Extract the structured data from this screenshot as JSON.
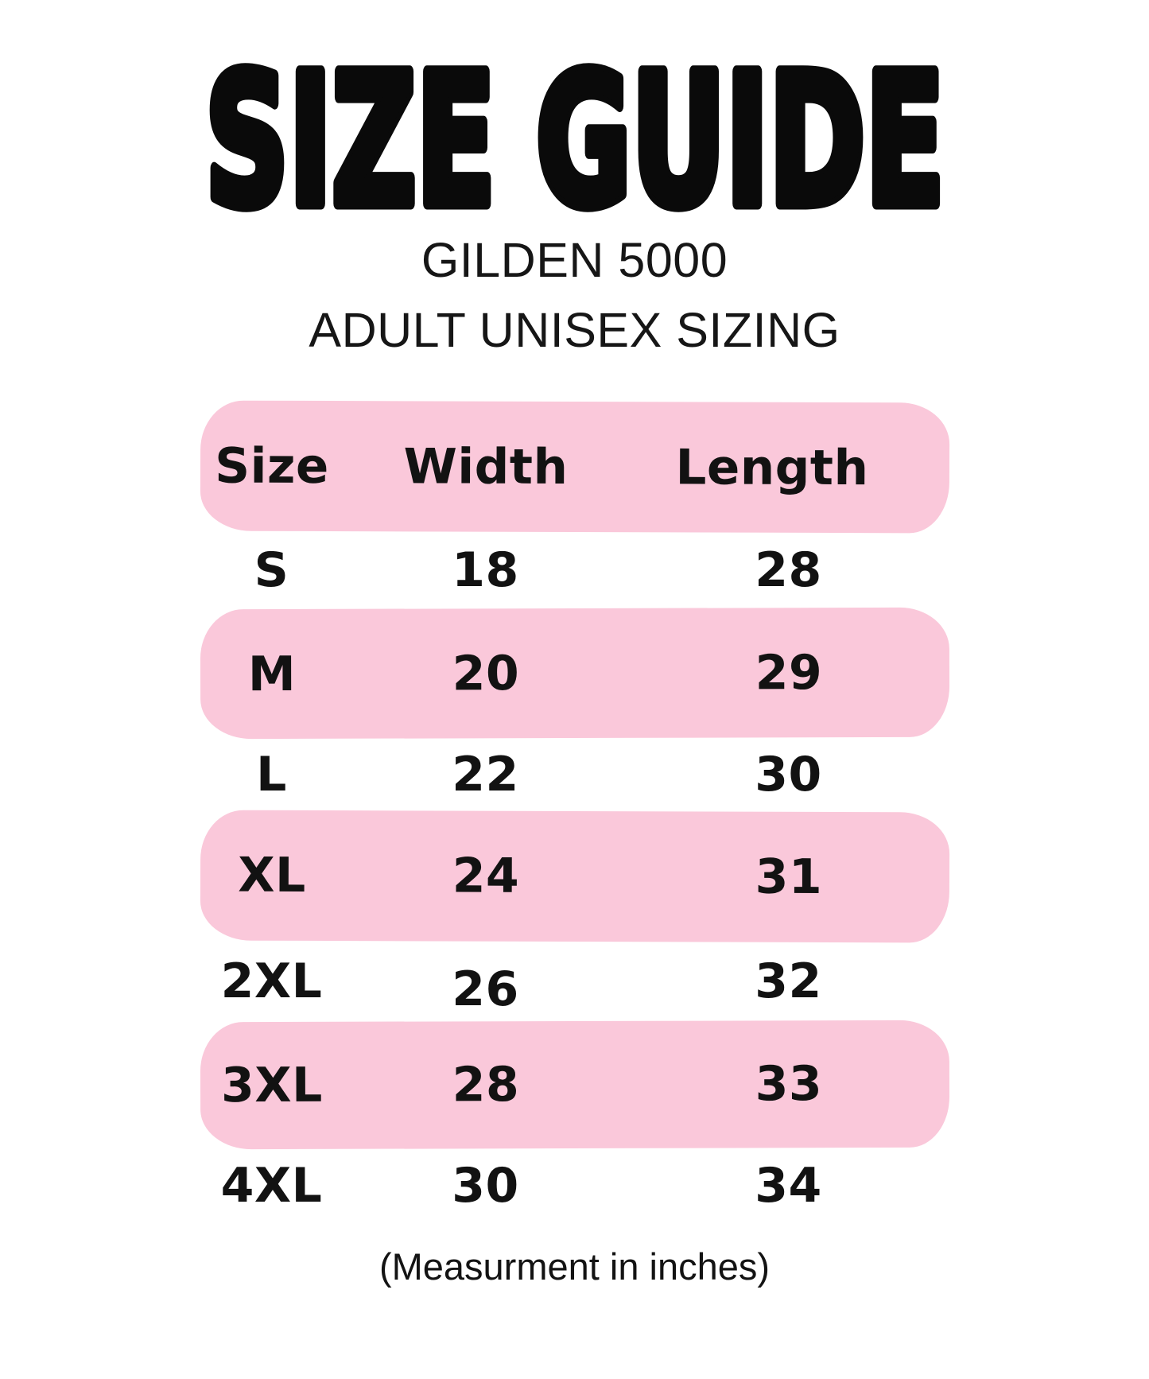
{
  "page": {
    "title": "SIZE GUIDE",
    "subtitle_line1": "GILDEN 5000",
    "subtitle_line2": "ADULT UNISEX SIZING",
    "footnote": "(Measurment in inches)",
    "colors": {
      "highlight_pink": "#FAC8DA",
      "text": "#121212",
      "background": "#FFFFFF"
    }
  },
  "table": {
    "columns": [
      "Size",
      "Width",
      "Length"
    ],
    "rows": [
      {
        "size": "S",
        "width": "18",
        "length": "28",
        "highlighted": false
      },
      {
        "size": "M",
        "width": "20",
        "length": "29",
        "highlighted": true
      },
      {
        "size": "L",
        "width": "22",
        "length": "30",
        "highlighted": false
      },
      {
        "size": "XL",
        "width": "24",
        "length": "31",
        "highlighted": true
      },
      {
        "size": "2XL",
        "width": "26",
        "length": "32",
        "highlighted": false
      },
      {
        "size": "3XL",
        "width": "28",
        "length": "33",
        "highlighted": true
      },
      {
        "size": "4XL",
        "width": "30",
        "length": "34",
        "highlighted": false
      }
    ]
  },
  "chart_data": {
    "type": "table",
    "title": "SIZE GUIDE",
    "subtitle": "GILDEN 5000 ADULT UNISEX SIZING",
    "columns": [
      "Size",
      "Width",
      "Length"
    ],
    "rows": [
      [
        "S",
        18,
        28
      ],
      [
        "M",
        20,
        29
      ],
      [
        "L",
        22,
        30
      ],
      [
        "XL",
        24,
        31
      ],
      [
        "2XL",
        26,
        32
      ],
      [
        "3XL",
        28,
        33
      ],
      [
        "4XL",
        30,
        34
      ]
    ],
    "units": "inches"
  }
}
